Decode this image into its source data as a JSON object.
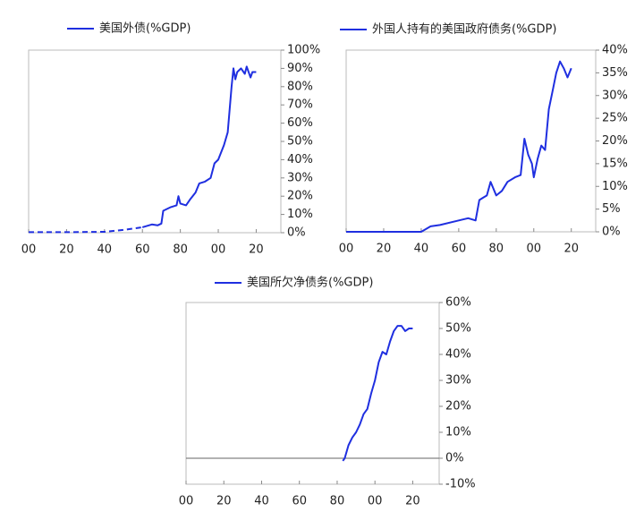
{
  "chart_data": [
    {
      "type": "line",
      "xlim": [
        1900,
        2033
      ],
      "xticks": [
        {
          "value": 1900,
          "label": "00"
        },
        {
          "value": 1920,
          "label": "20"
        },
        {
          "value": 1940,
          "label": "40"
        },
        {
          "value": 1960,
          "label": "60"
        },
        {
          "value": 1980,
          "label": "80"
        },
        {
          "value": 2000,
          "label": "00"
        },
        {
          "value": 2020,
          "label": "20"
        }
      ],
      "ylim": [
        0,
        100
      ],
      "yticks": [
        {
          "value": 0,
          "label": "0%"
        },
        {
          "value": 10,
          "label": "10%"
        },
        {
          "value": 20,
          "label": "20%"
        },
        {
          "value": 30,
          "label": "30%"
        },
        {
          "value": 40,
          "label": "40%"
        },
        {
          "value": 50,
          "label": "50%"
        },
        {
          "value": 60,
          "label": "60%"
        },
        {
          "value": 70,
          "label": "70%"
        },
        {
          "value": 80,
          "label": "80%"
        },
        {
          "value": 90,
          "label": "90%"
        },
        {
          "value": 100,
          "label": "100%"
        }
      ],
      "dashed_x_range": [
        1900,
        1960
      ],
      "series": [
        {
          "name": "美国外债(%GDP)",
          "color": "#1f2fe0",
          "x": [
            1900,
            1920,
            1940,
            1950,
            1960,
            1965,
            1968,
            1970,
            1971,
            1975,
            1978,
            1979,
            1980,
            1983,
            1985,
            1988,
            1990,
            1993,
            1996,
            1998,
            2000,
            2003,
            2005,
            2007,
            2008,
            2009,
            2010,
            2012,
            2014,
            2015,
            2017,
            2018,
            2020
          ],
          "values": [
            0.3,
            0.3,
            0.5,
            1.5,
            3,
            4.5,
            4,
            5,
            12,
            14,
            15,
            20,
            16,
            15,
            18,
            22,
            27,
            28,
            30,
            38,
            40,
            48,
            55,
            80,
            90,
            84,
            88,
            90,
            87,
            91,
            85,
            88,
            88
          ]
        }
      ]
    },
    {
      "type": "line",
      "xlim": [
        1900,
        2033
      ],
      "xticks": [
        {
          "value": 1900,
          "label": "00"
        },
        {
          "value": 1920,
          "label": "20"
        },
        {
          "value": 1940,
          "label": "40"
        },
        {
          "value": 1960,
          "label": "60"
        },
        {
          "value": 1980,
          "label": "80"
        },
        {
          "value": 2000,
          "label": "00"
        },
        {
          "value": 2020,
          "label": "20"
        }
      ],
      "ylim": [
        0,
        40
      ],
      "yticks": [
        {
          "value": 0,
          "label": "0%"
        },
        {
          "value": 5,
          "label": "5%"
        },
        {
          "value": 10,
          "label": "10%"
        },
        {
          "value": 15,
          "label": "15%"
        },
        {
          "value": 20,
          "label": "20%"
        },
        {
          "value": 25,
          "label": "25%"
        },
        {
          "value": 30,
          "label": "30%"
        },
        {
          "value": 35,
          "label": "35%"
        },
        {
          "value": 40,
          "label": "40%"
        }
      ],
      "series": [
        {
          "name": "外国人持有的美国政府债务(%GDP)",
          "color": "#1f2fe0",
          "x": [
            1900,
            1940,
            1945,
            1950,
            1960,
            1965,
            1969,
            1971,
            1973,
            1975,
            1977,
            1978,
            1980,
            1983,
            1986,
            1990,
            1993,
            1995,
            1997,
            1999,
            2000,
            2002,
            2004,
            2006,
            2008,
            2010,
            2012,
            2014,
            2016,
            2018,
            2020
          ],
          "values": [
            0,
            0,
            1.2,
            1.5,
            2.5,
            3,
            2.5,
            7,
            7.5,
            8,
            11,
            10,
            8,
            9,
            11,
            12,
            12.5,
            20.5,
            17,
            15,
            12,
            16,
            19,
            18,
            27,
            31,
            35,
            37.5,
            36,
            34,
            36
          ]
        }
      ]
    },
    {
      "type": "line",
      "xlim": [
        1900,
        2034
      ],
      "xticks": [
        {
          "value": 1900,
          "label": "00"
        },
        {
          "value": 1920,
          "label": "20"
        },
        {
          "value": 1940,
          "label": "40"
        },
        {
          "value": 1960,
          "label": "60"
        },
        {
          "value": 1980,
          "label": "80"
        },
        {
          "value": 2000,
          "label": "00"
        },
        {
          "value": 2020,
          "label": "20"
        }
      ],
      "ylim": [
        -10,
        60
      ],
      "yticks": [
        {
          "value": -10,
          "label": "-10%"
        },
        {
          "value": 0,
          "label": "0%"
        },
        {
          "value": 10,
          "label": "10%"
        },
        {
          "value": 20,
          "label": "20%"
        },
        {
          "value": 30,
          "label": "30%"
        },
        {
          "value": 40,
          "label": "40%"
        },
        {
          "value": 50,
          "label": "50%"
        },
        {
          "value": 60,
          "label": "60%"
        }
      ],
      "zero_line": true,
      "series": [
        {
          "name": "美国所欠净债务(%GDP)",
          "color": "#1f2fe0",
          "x": [
            1983,
            1984,
            1986,
            1988,
            1990,
            1992,
            1994,
            1996,
            1998,
            2000,
            2002,
            2004,
            2006,
            2008,
            2010,
            2012,
            2014,
            2016,
            2018,
            2020
          ],
          "values": [
            -1,
            0,
            5,
            8,
            10,
            13,
            17,
            19,
            25,
            30,
            37,
            41,
            40,
            45,
            49,
            51,
            51,
            49,
            50,
            50
          ]
        }
      ]
    }
  ]
}
